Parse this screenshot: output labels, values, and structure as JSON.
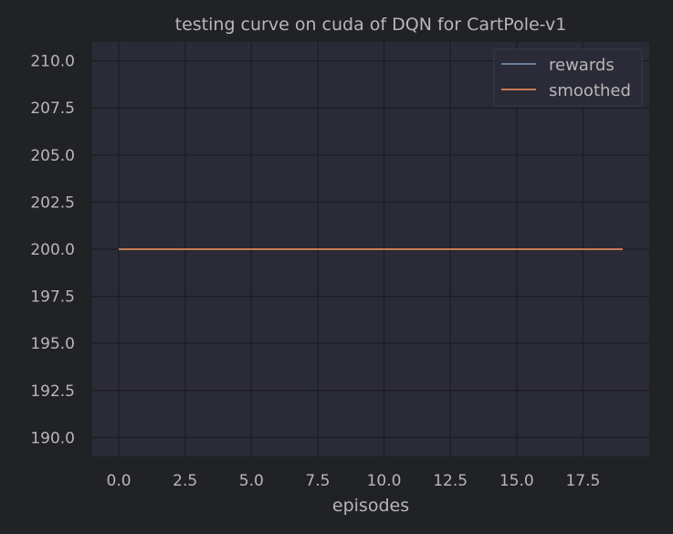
{
  "chart_data": {
    "type": "line",
    "title": "testing curve on cuda of DQN for CartPole-v1",
    "xlabel": "episodes",
    "ylabel": "",
    "xlim": [
      -1.0,
      20.0
    ],
    "ylim": [
      189.0,
      211.0
    ],
    "xticks": [
      0.0,
      2.5,
      5.0,
      7.5,
      10.0,
      12.5,
      15.0,
      17.5
    ],
    "yticks": [
      190.0,
      192.5,
      195.0,
      197.5,
      200.0,
      202.5,
      205.0,
      207.5,
      210.0
    ],
    "xtick_labels": [
      "0.0",
      "2.5",
      "5.0",
      "7.5",
      "10.0",
      "12.5",
      "15.0",
      "17.5"
    ],
    "ytick_labels": [
      "190.0",
      "192.5",
      "195.0",
      "197.5",
      "200.0",
      "202.5",
      "205.0",
      "207.5",
      "210.0"
    ],
    "grid": true,
    "legend_position": "upper right",
    "x": [
      0,
      1,
      2,
      3,
      4,
      5,
      6,
      7,
      8,
      9,
      10,
      11,
      12,
      13,
      14,
      15,
      16,
      17,
      18,
      19
    ],
    "series": [
      {
        "name": "rewards",
        "color": "#6a7f9c",
        "values": [
          200,
          200,
          200,
          200,
          200,
          200,
          200,
          200,
          200,
          200,
          200,
          200,
          200,
          200,
          200,
          200,
          200,
          200,
          200,
          200
        ]
      },
      {
        "name": "smoothed",
        "color": "#c97a55",
        "values": [
          200,
          200,
          200,
          200,
          200,
          200,
          200,
          200,
          200,
          200,
          200,
          200,
          200,
          200,
          200,
          200,
          200,
          200,
          200,
          200
        ]
      }
    ]
  },
  "colors": {
    "figure_background": "#212226",
    "plot_background": "#2a2b36",
    "grid": "#1c1d22",
    "text": "#b7b7b7"
  }
}
